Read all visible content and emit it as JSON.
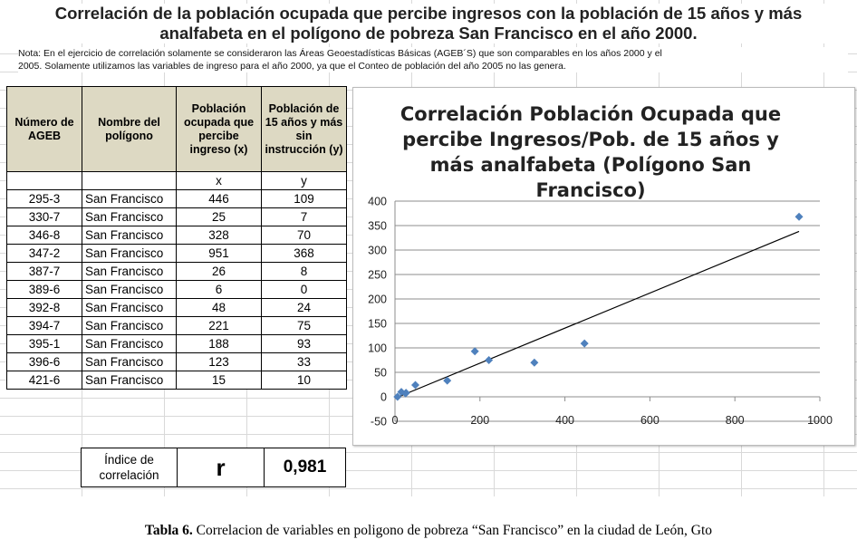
{
  "title": {
    "line1": "Correlación de la población ocupada que percibe ingresos con la población de 15 años y más",
    "line2": "analfabeta en el polígono de pobreza San Francisco en el año 2000."
  },
  "note": {
    "line1": "Nota: En el ejercicio de correlación solamente se consideraron  las Áreas Geoestadísticas Básicas  (AGEB´S) que son comparables en  los años  2000 y el",
    "line2": "2005. Solamente utilizamos las variables de ingreso para el año 2000, ya que el Conteo de población del año 2005 no las genera."
  },
  "table": {
    "headers": {
      "ageb": "Número de AGEB",
      "poligono": "Nombre del polígono",
      "ocupada": "Población ocupada que percibe ingreso (x)",
      "analfabeta": "Población de 15 años y más sin instrucción (y)"
    },
    "var_row": {
      "a": "",
      "b": "",
      "x": "x",
      "y": "y"
    },
    "rows": [
      [
        "295-3",
        "San Francisco",
        "446",
        "109"
      ],
      [
        "330-7",
        "San Francisco",
        "25",
        "7"
      ],
      [
        "346-8",
        "San Francisco",
        "328",
        "70"
      ],
      [
        "347-2",
        "San Francisco",
        "951",
        "368"
      ],
      [
        "387-7",
        "San Francisco",
        "26",
        "8"
      ],
      [
        "389-6",
        "San Francisco",
        "6",
        "0"
      ],
      [
        "392-8",
        "San Francisco",
        "48",
        "24"
      ],
      [
        "394-7",
        "San Francisco",
        "221",
        "75"
      ],
      [
        "395-1",
        "San Francisco",
        "188",
        "93"
      ],
      [
        "396-6",
        "San Francisco",
        "123",
        "33"
      ],
      [
        "421-6",
        "San Francisco",
        "15",
        "10"
      ]
    ]
  },
  "index": {
    "label": "Índice de correlación",
    "symbol": "r",
    "value": "0,981"
  },
  "chart_data": {
    "type": "scatter",
    "title": "Correlación Población Ocupada que percibe Ingresos/Pob. de 15 años y más analfabeta (Polígono San Francisco)",
    "title_lines": [
      "Correlación Población Ocupada que",
      "percibe Ingresos/Pob. de 15 años y",
      "más analfabeta (Polígono San",
      "Francisco)"
    ],
    "xlabel": "",
    "ylabel": "",
    "xlim": [
      0,
      1000
    ],
    "ylim": [
      -50,
      400
    ],
    "xticks": [
      "0",
      "200",
      "400",
      "600",
      "800",
      "1000"
    ],
    "yticks": [
      "-50",
      "0",
      "50",
      "100",
      "150",
      "200",
      "250",
      "300",
      "350",
      "400"
    ],
    "grid": true,
    "marker_color": "#4f81bd",
    "trendline": {
      "x": [
        0,
        951
      ],
      "y": [
        -3,
        338
      ]
    },
    "x": [
      446,
      25,
      328,
      951,
      26,
      6,
      48,
      221,
      188,
      123,
      15
    ],
    "y": [
      109,
      7,
      70,
      368,
      8,
      0,
      24,
      75,
      93,
      33,
      10
    ]
  },
  "caption": {
    "label": "Tabla 6.",
    "text": " Correlacion de variables en poligono de pobreza “San Francisco” en la ciudad de León, Gto"
  }
}
